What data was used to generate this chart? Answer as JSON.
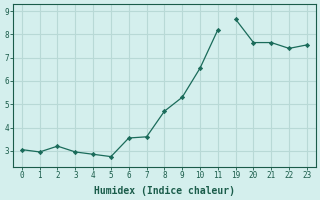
{
  "x_positions": [
    0,
    1,
    2,
    3,
    4,
    5,
    6,
    7,
    8,
    9,
    10,
    11,
    12,
    13,
    14,
    15,
    16
  ],
  "x_labels": [
    "0",
    "1",
    "2",
    "3",
    "4",
    "5",
    "6",
    "7",
    "8",
    "9",
    "10",
    "11",
    "19",
    "20",
    "21",
    "22",
    "23"
  ],
  "y": [
    3.05,
    2.95,
    3.2,
    2.95,
    2.85,
    2.75,
    3.55,
    3.6,
    4.7,
    5.3,
    6.55,
    8.2,
    8.65,
    7.65,
    7.65,
    7.4,
    7.55
  ],
  "line_color": "#1a6b5a",
  "marker_color": "#1a6b5a",
  "bg_color": "#d4efed",
  "grid_color": "#b8d9d6",
  "xlabel": "Humidex (Indice chaleur)",
  "xlim": [
    -0.5,
    16.5
  ],
  "ylim": [
    2.3,
    9.3
  ],
  "yticks": [
    3,
    4,
    5,
    6,
    7,
    8,
    9
  ],
  "xlabel_color": "#1a5c4a",
  "tick_color": "#1a5c4a",
  "axis_color": "#1a5c4a",
  "seg1_end": 12,
  "fontsize_tick": 5.5,
  "fontsize_xlabel": 7
}
